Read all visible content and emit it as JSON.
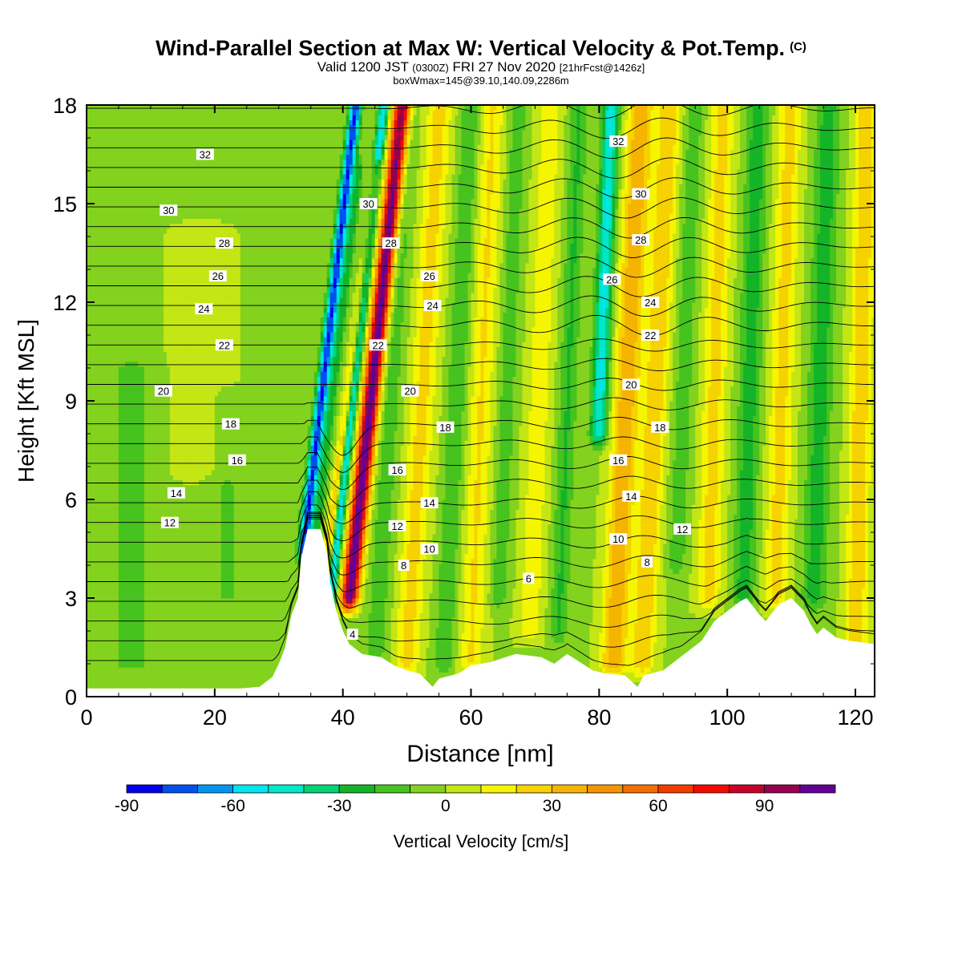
{
  "header": {
    "title": "Wind-Parallel Section at Max W: Vertical Velocity & Pot.Temp.",
    "copyright": "(C)",
    "valid_prefix": "Valid 1200 JST",
    "valid_utc": "(0300Z)",
    "valid_date": "FRI 27 Nov 2020",
    "forecast": "[21hrFcst@1426z]",
    "box_info": "boxWmax=145@39.10,140.09,2286m"
  },
  "chart_data": {
    "type": "heatmap",
    "xlabel": "Distance [nm]",
    "ylabel": "Height [Kft MSL]",
    "xlim": [
      0,
      123
    ],
    "ylim": [
      0,
      18
    ],
    "x_ticks": [
      0,
      20,
      40,
      60,
      80,
      100,
      120
    ],
    "y_ticks": [
      0,
      3,
      6,
      9,
      12,
      15,
      18
    ],
    "colorbar": {
      "label": "Vertical Velocity [cm/s]",
      "tick_values": [
        -90,
        -60,
        -30,
        0,
        30,
        60,
        90
      ],
      "levels": [
        -90,
        -80,
        -70,
        -60,
        -50,
        -40,
        -30,
        -20,
        -10,
        0,
        10,
        20,
        30,
        40,
        50,
        60,
        70,
        80,
        90,
        100,
        110
      ],
      "colors": [
        "#0000f0",
        "#0050f0",
        "#0096f0",
        "#00e6f0",
        "#00e6c8",
        "#00d278",
        "#14b428",
        "#46c31e",
        "#82d21e",
        "#c3e614",
        "#f5f500",
        "#f5d200",
        "#f5b400",
        "#f59600",
        "#f56e00",
        "#f53c00",
        "#f50a00",
        "#c80028",
        "#960050",
        "#640096"
      ]
    },
    "terrain": [
      [
        0,
        0.25
      ],
      [
        24,
        0.25
      ],
      [
        27,
        0.3
      ],
      [
        29,
        0.6
      ],
      [
        30,
        1.0
      ],
      [
        31,
        1.5
      ],
      [
        32,
        2.5
      ],
      [
        33,
        3.0
      ],
      [
        33.5,
        4.2
      ],
      [
        34.5,
        5.1
      ],
      [
        36.5,
        5.1
      ],
      [
        37.5,
        4.4
      ],
      [
        38,
        3.5
      ],
      [
        39,
        2.6
      ],
      [
        40,
        2.0
      ],
      [
        41,
        1.6
      ],
      [
        43,
        1.3
      ],
      [
        46,
        1.2
      ],
      [
        48,
        0.95
      ],
      [
        50,
        0.8
      ],
      [
        52,
        0.7
      ],
      [
        54,
        0.3
      ],
      [
        55,
        0.55
      ],
      [
        58,
        0.7
      ],
      [
        60,
        0.95
      ],
      [
        63,
        1.05
      ],
      [
        67,
        1.3
      ],
      [
        69,
        1.25
      ],
      [
        71,
        1.2
      ],
      [
        73,
        1.0
      ],
      [
        75,
        1.3
      ],
      [
        77,
        1.05
      ],
      [
        79,
        0.8
      ],
      [
        81,
        0.7
      ],
      [
        84,
        0.65
      ],
      [
        86,
        0.3
      ],
      [
        87,
        0.65
      ],
      [
        90,
        0.8
      ],
      [
        92,
        1.1
      ],
      [
        94,
        1.4
      ],
      [
        96,
        1.7
      ],
      [
        98,
        2.3
      ],
      [
        100,
        2.6
      ],
      [
        102,
        2.9
      ],
      [
        103,
        3.0
      ],
      [
        105,
        2.5
      ],
      [
        106,
        2.3
      ],
      [
        108,
        2.8
      ],
      [
        110,
        3.0
      ],
      [
        112,
        2.6
      ],
      [
        113,
        2.2
      ],
      [
        114,
        1.9
      ],
      [
        115,
        2.1
      ],
      [
        117,
        1.8
      ],
      [
        119,
        1.7
      ],
      [
        123,
        1.6
      ]
    ],
    "w_structure": {
      "background": -1,
      "features": [
        {
          "x": 34.8,
          "w": -80,
          "sigma": 0.65,
          "z_min": 4.5,
          "z_max": 18,
          "slope_nm_per_kft": 0.6
        },
        {
          "x": 36.5,
          "w": -25,
          "sigma": 0.5,
          "z_min": 4.5,
          "z_max": 16,
          "slope_nm_per_kft": 0.6
        },
        {
          "x": 38.8,
          "w": 35,
          "sigma": 0.5,
          "z_min": 2.8,
          "z_max": 16,
          "slope_nm_per_kft": 0.65
        },
        {
          "x": 39.8,
          "w": -55,
          "sigma": 0.55,
          "z_min": 2.8,
          "z_max": 18,
          "slope_nm_per_kft": 0.55
        },
        {
          "x": 42.7,
          "w": 110,
          "sigma": 0.95,
          "z_min": 3,
          "z_max": 18,
          "slope_nm_per_kft": 0.55
        },
        {
          "x": 46.5,
          "w": -15,
          "sigma": 1.2,
          "z_min": 1,
          "z_max": 18,
          "slope_nm_per_kft": 0.3
        },
        {
          "x": 51.5,
          "w": 25,
          "sigma": 1.4,
          "z_min": 1,
          "z_max": 18,
          "slope_nm_per_kft": 0.3
        },
        {
          "x": 57,
          "w": -18,
          "sigma": 1.1,
          "z_min": 1,
          "z_max": 18,
          "slope_nm_per_kft": 0.25
        },
        {
          "x": 61,
          "w": 22,
          "sigma": 1.3,
          "z_min": 1,
          "z_max": 18,
          "slope_nm_per_kft": 0.2
        },
        {
          "x": 65,
          "w": -15,
          "sigma": 1.0,
          "z_min": 3,
          "z_max": 18,
          "slope_nm_per_kft": 0.2
        },
        {
          "x": 70,
          "w": 18,
          "sigma": 1.3,
          "z_min": 2,
          "z_max": 18,
          "slope_nm_per_kft": 0.2
        },
        {
          "x": 74.5,
          "w": -20,
          "sigma": 1.0,
          "z_min": 2,
          "z_max": 18,
          "slope_nm_per_kft": 0.2
        },
        {
          "x": 79.5,
          "w": -50,
          "sigma": 0.9,
          "z_min": 8,
          "z_max": 18,
          "slope_nm_per_kft": 0.2
        },
        {
          "x": 83.5,
          "w": 40,
          "sigma": 1.4,
          "z_min": 1,
          "z_max": 18,
          "slope_nm_per_kft": 0.25
        },
        {
          "x": 88,
          "w": 30,
          "sigma": 1.3,
          "z_min": 1,
          "z_max": 18,
          "slope_nm_per_kft": 0.25
        },
        {
          "x": 92.5,
          "w": -15,
          "sigma": 1.1,
          "z_min": 4,
          "z_max": 18,
          "slope_nm_per_kft": 0.2
        },
        {
          "x": 97.5,
          "w": 25,
          "sigma": 1.3,
          "z_min": 3,
          "z_max": 18,
          "slope_nm_per_kft": 0.15
        },
        {
          "x": 103,
          "w": -25,
          "sigma": 1.2,
          "z_min": 3,
          "z_max": 18,
          "slope_nm_per_kft": 0.15
        },
        {
          "x": 108,
          "w": 25,
          "sigma": 1.3,
          "z_min": 3,
          "z_max": 18,
          "slope_nm_per_kft": 0.15
        },
        {
          "x": 114,
          "w": -25,
          "sigma": 1.3,
          "z_min": 3,
          "z_max": 18,
          "slope_nm_per_kft": 0.15
        },
        {
          "x": 120.5,
          "w": 30,
          "sigma": 1.2,
          "z_min": 1.5,
          "z_max": 18,
          "slope_nm_per_kft": 0.1
        },
        {
          "x": 18,
          "w": 8,
          "sigma": 3,
          "z_min": 7,
          "z_max": 14,
          "slope_nm_per_kft": 0
        },
        {
          "x": 7,
          "w": -12,
          "sigma": 2.5,
          "z_min": 1,
          "z_max": 10,
          "slope_nm_per_kft": 0
        },
        {
          "x": 22,
          "w": -10,
          "sigma": 2,
          "z_min": 3,
          "z_max": 9,
          "slope_nm_per_kft": 0
        }
      ]
    },
    "theta_contours": {
      "levels": [
        4,
        6,
        8,
        10,
        12,
        14,
        16,
        18,
        20,
        22,
        24,
        26,
        28,
        30,
        32
      ],
      "labels": [
        {
          "text": "32",
          "x": 18.5,
          "y": 16.5
        },
        {
          "text": "30",
          "x": 12.8,
          "y": 14.8
        },
        {
          "text": "28",
          "x": 21.5,
          "y": 13.8
        },
        {
          "text": "26",
          "x": 20.5,
          "y": 12.8
        },
        {
          "text": "24",
          "x": 18.3,
          "y": 11.8
        },
        {
          "text": "22",
          "x": 21.5,
          "y": 10.7
        },
        {
          "text": "20",
          "x": 12,
          "y": 9.3
        },
        {
          "text": "18",
          "x": 22.5,
          "y": 8.3
        },
        {
          "text": "16",
          "x": 23.5,
          "y": 7.2
        },
        {
          "text": "14",
          "x": 14,
          "y": 6.2
        },
        {
          "text": "12",
          "x": 13,
          "y": 5.3
        },
        {
          "text": "30",
          "x": 44,
          "y": 15
        },
        {
          "text": "28",
          "x": 47.5,
          "y": 13.8
        },
        {
          "text": "26",
          "x": 53.5,
          "y": 12.8
        },
        {
          "text": "24",
          "x": 54,
          "y": 11.9
        },
        {
          "text": "22",
          "x": 45.5,
          "y": 10.7
        },
        {
          "text": "20",
          "x": 50.5,
          "y": 9.3
        },
        {
          "text": "18",
          "x": 56,
          "y": 8.2
        },
        {
          "text": "16",
          "x": 48.5,
          "y": 6.9
        },
        {
          "text": "14",
          "x": 53.5,
          "y": 5.9
        },
        {
          "text": "12",
          "x": 48.5,
          "y": 5.2
        },
        {
          "text": "10",
          "x": 53.5,
          "y": 4.5
        },
        {
          "text": "8",
          "x": 49.5,
          "y": 4.0
        },
        {
          "text": "6",
          "x": 69,
          "y": 3.6
        },
        {
          "text": "4",
          "x": 41.5,
          "y": 1.9
        },
        {
          "text": "32",
          "x": 83,
          "y": 16.9
        },
        {
          "text": "30",
          "x": 86.5,
          "y": 15.3
        },
        {
          "text": "28",
          "x": 86.5,
          "y": 13.9
        },
        {
          "text": "26",
          "x": 82,
          "y": 12.7
        },
        {
          "text": "24",
          "x": 88,
          "y": 12.0
        },
        {
          "text": "22",
          "x": 88,
          "y": 11.0
        },
        {
          "text": "20",
          "x": 85,
          "y": 9.5
        },
        {
          "text": "18",
          "x": 89.5,
          "y": 8.2
        },
        {
          "text": "16",
          "x": 83,
          "y": 7.2
        },
        {
          "text": "14",
          "x": 85,
          "y": 6.1
        },
        {
          "text": "12",
          "x": 93,
          "y": 5.1
        },
        {
          "text": "10",
          "x": 83,
          "y": 4.8
        },
        {
          "text": "8",
          "x": 87.5,
          "y": 4.1
        }
      ]
    }
  }
}
